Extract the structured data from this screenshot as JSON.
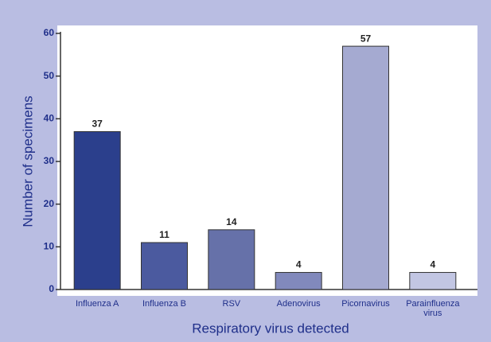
{
  "chart_data": {
    "type": "bar",
    "categories": [
      "Influenza A",
      "Influenza B",
      "RSV",
      "Adenovirus",
      "Picornavirus",
      "Parainfluenza virus"
    ],
    "values": [
      37,
      11,
      14,
      4,
      57,
      4
    ],
    "colors": [
      "#2b3f8c",
      "#4b5a9f",
      "#6671a9",
      "#8189bc",
      "#a5aad1",
      "#c2c6e3"
    ],
    "xlabel": "Respiratory virus detected",
    "ylabel": "Number of specimens",
    "ylim": [
      0,
      60
    ],
    "yticks": [
      0,
      10,
      20,
      30,
      40,
      50,
      60
    ]
  }
}
